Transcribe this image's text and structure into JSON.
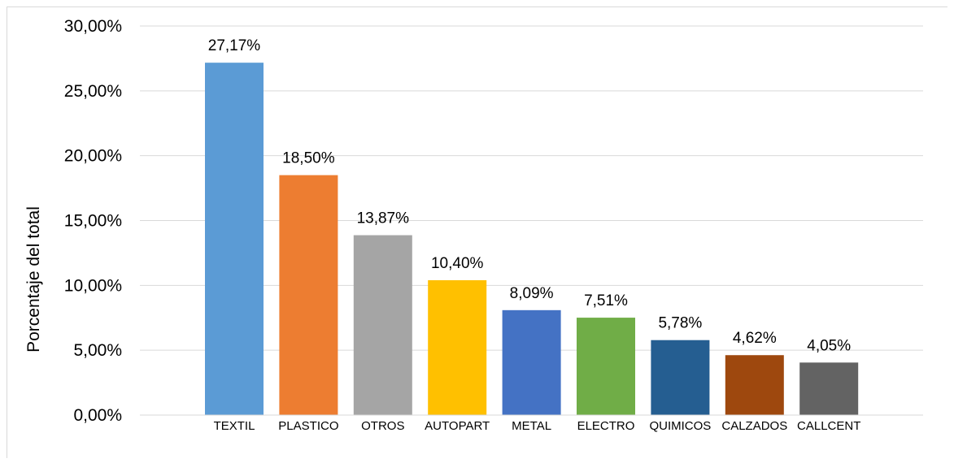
{
  "chart_data": {
    "type": "bar",
    "title": "",
    "xlabel": "",
    "ylabel": "Porcentaje del total",
    "ylim": [
      0,
      30
    ],
    "y_ticks": [
      "0,00%",
      "5,00%",
      "10,00%",
      "15,00%",
      "20,00%",
      "25,00%",
      "30,00%"
    ],
    "y_tick_values": [
      0,
      5,
      10,
      15,
      20,
      25,
      30
    ],
    "grid": true,
    "categories": [
      "TEXTIL",
      "PLASTICO",
      "OTROS",
      "AUTOPART",
      "METAL",
      "ELECTRO",
      "QUIMICOS",
      "CALZADOS",
      "CALLCENT"
    ],
    "values": [
      27.17,
      18.5,
      13.87,
      10.4,
      8.09,
      7.51,
      5.78,
      4.62,
      4.05
    ],
    "data_labels": [
      "27,17%",
      "18,50%",
      "13,87%",
      "10,40%",
      "8,09%",
      "7,51%",
      "5,78%",
      "4,62%",
      "4,05%"
    ],
    "colors": [
      "#5b9bd5",
      "#ed7d31",
      "#a5a5a5",
      "#ffc000",
      "#4472c4",
      "#70ad47",
      "#255e91",
      "#9e480e",
      "#636363"
    ]
  }
}
